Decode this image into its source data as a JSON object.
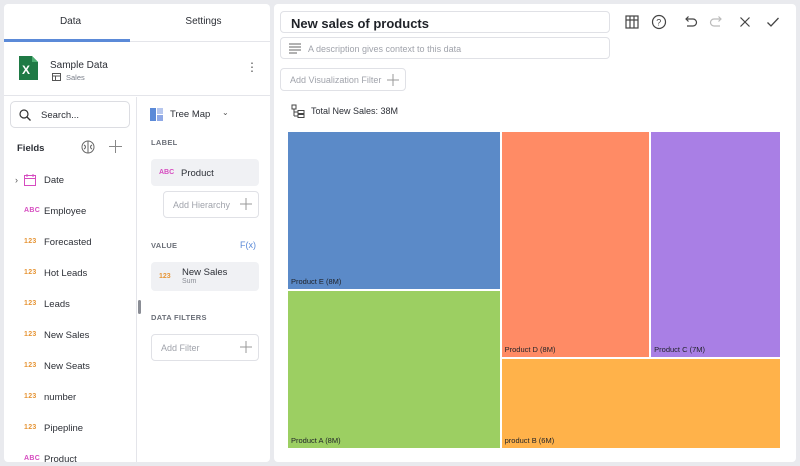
{
  "tabs": [
    {
      "label": "Data"
    },
    {
      "label": "Settings"
    }
  ],
  "source": {
    "name": "Sample Data",
    "sheet": "Sales"
  },
  "search": {
    "placeholder": "Search..."
  },
  "fields_header": "Fields",
  "fields": [
    {
      "type": "",
      "name": "Date",
      "kind": "date"
    },
    {
      "type": "ABC",
      "name": "Employee",
      "kind": "abc"
    },
    {
      "type": "123",
      "name": "Forecasted",
      "kind": "num"
    },
    {
      "type": "123",
      "name": "Hot Leads",
      "kind": "num"
    },
    {
      "type": "123",
      "name": "Leads",
      "kind": "num"
    },
    {
      "type": "123",
      "name": "New Sales",
      "kind": "num"
    },
    {
      "type": "123",
      "name": "New Seats",
      "kind": "num"
    },
    {
      "type": "123",
      "name": "number",
      "kind": "num"
    },
    {
      "type": "123",
      "name": "Pipepline",
      "kind": "num"
    },
    {
      "type": "ABC",
      "name": "Product",
      "kind": "abc"
    }
  ],
  "config": {
    "viz_type": "Tree Map",
    "label_header": "LABEL",
    "label_field": {
      "type": "ABC",
      "name": "Product"
    },
    "add_hierarchy": "Add Hierarchy",
    "value_header": "VALUE",
    "fx_label": "F(x)",
    "value_field": {
      "type": "123",
      "name": "New Sales",
      "agg": "Sum"
    },
    "data_filters_header": "DATA FILTERS",
    "add_filter": "Add Filter"
  },
  "editor": {
    "title": "New sales of products",
    "description_placeholder": "A description gives context to this data",
    "viz_filter_label": "Add Visualization Filter",
    "total_label": "Total New Sales: 38M"
  },
  "colors": {
    "accent": "#5b8ad8",
    "num_type": "#e69536",
    "abc_type": "#d64cc0"
  },
  "chart_data": {
    "type": "treemap",
    "title": "",
    "total": "38M",
    "items": [
      {
        "label": "Product E (8M)",
        "name": "Product E",
        "value": 8,
        "color": "#5b8ac8"
      },
      {
        "label": "Product A (8M)",
        "name": "Product A",
        "value": 8,
        "color": "#9ccf62"
      },
      {
        "label": "Product D (8M)",
        "name": "Product D",
        "value": 8,
        "color": "#ff8b65"
      },
      {
        "label": "Product C (7M)",
        "name": "Product C",
        "value": 7,
        "color": "#a97fe5"
      },
      {
        "label": "product B (6M)",
        "name": "product B",
        "value": 6,
        "color": "#ffb24a"
      }
    ]
  }
}
